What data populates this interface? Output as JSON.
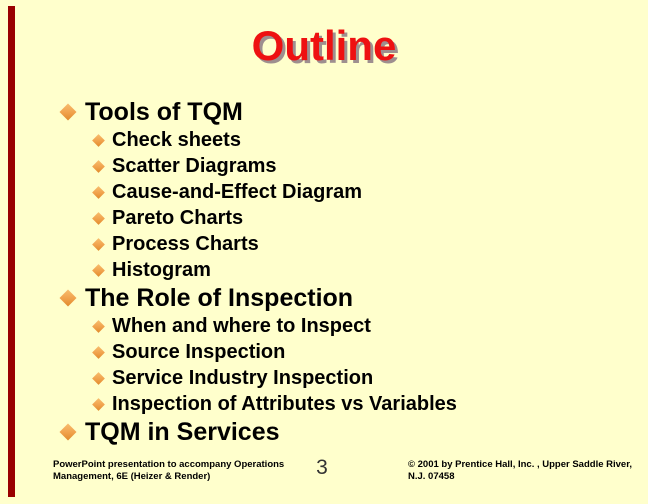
{
  "slide": {
    "title": "Outline",
    "bullets": [
      {
        "level": 1,
        "text": "Tools of TQM"
      },
      {
        "level": 2,
        "text": "Check sheets"
      },
      {
        "level": 2,
        "text": "Scatter Diagrams"
      },
      {
        "level": 2,
        "text": "Cause-and-Effect Diagram"
      },
      {
        "level": 2,
        "text": "Pareto Charts"
      },
      {
        "level": 2,
        "text": "Process Charts"
      },
      {
        "level": 2,
        "text": "Histogram"
      },
      {
        "level": 1,
        "text": "The Role of Inspection"
      },
      {
        "level": 2,
        "text": "When and where to Inspect"
      },
      {
        "level": 2,
        "text": "Source Inspection"
      },
      {
        "level": 2,
        "text": "Service Industry Inspection"
      },
      {
        "level": 2,
        "text": "Inspection of Attributes vs Variables"
      },
      {
        "level": 1,
        "text": "TQM in Services"
      }
    ],
    "footer": {
      "left_line1": "PowerPoint presentation to accompany Operations",
      "left_line2": "Management, 6E (Heizer & Render)",
      "page_number": "3",
      "right_line1": "© 2001 by Prentice Hall, Inc. ,  Upper Saddle River,",
      "right_line2": "N.J. 07458"
    },
    "colors": {
      "background": "#FFFFCC",
      "title": "#EE1111",
      "title_shadow": "#9E8F8F",
      "body_text": "#000000",
      "bullet_diamond": "#F0A14B",
      "left_bar": "#990000"
    }
  }
}
